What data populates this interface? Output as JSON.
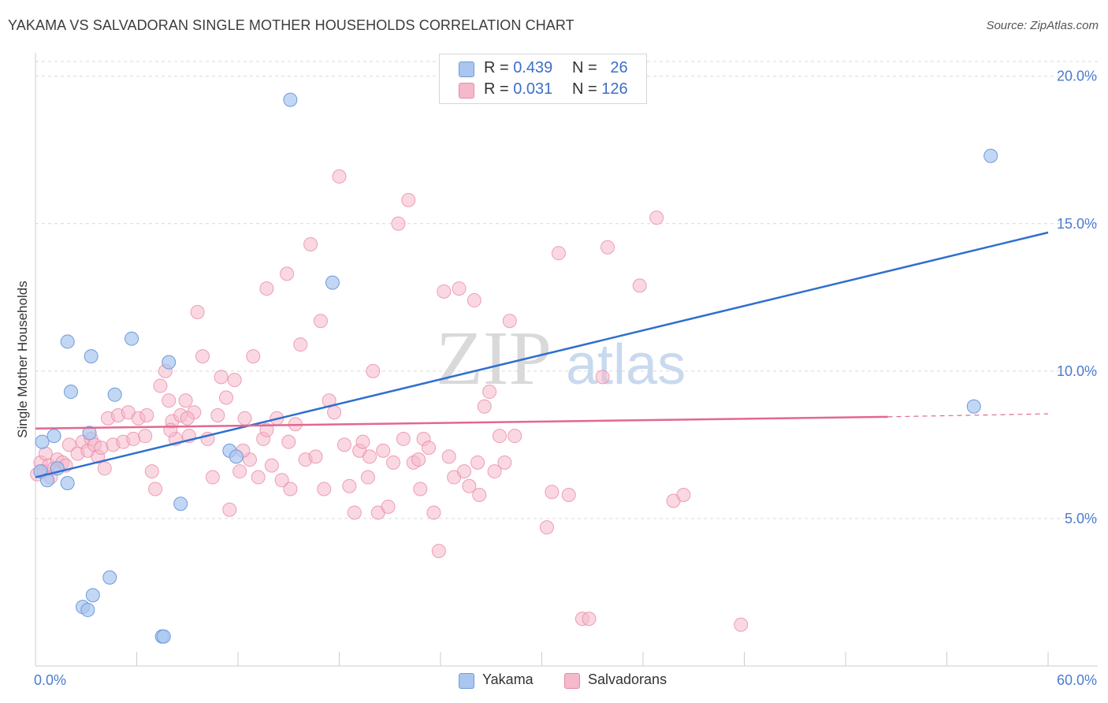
{
  "header": {
    "title": "YAKAMA VS SALVADORAN SINGLE MOTHER HOUSEHOLDS CORRELATION CHART",
    "source": "Source: ZipAtlas.com"
  },
  "watermark": {
    "text_zip": "ZIP",
    "text_atlas": "atlas"
  },
  "legend_top": {
    "rows": [
      {
        "r_label": "R =",
        "r_value": "0.439",
        "n_label": "N =",
        "n_value": "26"
      },
      {
        "r_label": "R =",
        "r_value": "0.031",
        "n_label": "N =",
        "n_value": "126"
      }
    ]
  },
  "legend_bottom": {
    "items": [
      "Yakama",
      "Salvadorans"
    ]
  },
  "colors": {
    "yakama_fill": "#a8c6ef",
    "yakama_stroke": "#6f9bd9",
    "yakama_line": "#2f6fce",
    "salv_fill": "#f6b8cb",
    "salv_stroke": "#e88aa8",
    "salv_line": "#e2688f",
    "grid": "#d9d9d9",
    "axis_label": "#4a7bd0"
  },
  "chart_data": {
    "type": "scatter",
    "title": "YAKAMA VS SALVADORAN SINGLE MOTHER HOUSEHOLDS CORRELATION CHART",
    "xlabel": "",
    "ylabel": "Single Mother Households",
    "xlim": [
      0,
      60
    ],
    "ylim": [
      0,
      20.5
    ],
    "x_tick_labels": [
      "0.0%",
      "60.0%"
    ],
    "y_ticks": [
      5,
      10,
      15,
      20
    ],
    "y_tick_labels": [
      "5.0%",
      "10.0%",
      "15.0%",
      "20.0%"
    ],
    "grid": true,
    "legend_position": "top-center",
    "series": [
      {
        "name": "Yakama",
        "r": 0.439,
        "n": 26,
        "trend": {
          "x": [
            0,
            60
          ],
          "y": [
            6.4,
            14.7
          ]
        },
        "points": [
          [
            0.3,
            6.6
          ],
          [
            0.7,
            6.3
          ],
          [
            0.4,
            7.6
          ],
          [
            1.1,
            7.8
          ],
          [
            1.3,
            6.7
          ],
          [
            1.9,
            6.2
          ],
          [
            1.9,
            11.0
          ],
          [
            3.2,
            7.9
          ],
          [
            3.3,
            10.5
          ],
          [
            4.7,
            9.2
          ],
          [
            5.7,
            11.1
          ],
          [
            7.9,
            10.3
          ],
          [
            2.1,
            9.3
          ],
          [
            8.6,
            5.5
          ],
          [
            11.5,
            7.3
          ],
          [
            11.9,
            7.1
          ],
          [
            15.1,
            19.2
          ],
          [
            17.6,
            13.0
          ],
          [
            4.4,
            3.0
          ],
          [
            3.4,
            2.4
          ],
          [
            2.8,
            2.0
          ],
          [
            3.1,
            1.9
          ],
          [
            7.5,
            1.0
          ],
          [
            7.6,
            1.0
          ],
          [
            56.6,
            17.3
          ],
          [
            55.6,
            8.8
          ]
        ]
      },
      {
        "name": "Salvadorans",
        "r": 0.031,
        "n": 126,
        "trend": {
          "x": [
            0,
            50.5
          ],
          "y": [
            8.05,
            8.45
          ]
        },
        "trend_dashed": {
          "x": [
            50.5,
            60
          ],
          "y": [
            8.45,
            8.55
          ]
        },
        "points": [
          [
            0.1,
            6.5
          ],
          [
            0.3,
            6.9
          ],
          [
            0.5,
            6.6
          ],
          [
            0.6,
            7.2
          ],
          [
            0.8,
            6.8
          ],
          [
            1.1,
            6.7
          ],
          [
            1.3,
            7.0
          ],
          [
            1.6,
            6.9
          ],
          [
            1.8,
            6.8
          ],
          [
            0.9,
            6.4
          ],
          [
            2.0,
            7.5
          ],
          [
            2.5,
            7.2
          ],
          [
            2.8,
            7.6
          ],
          [
            3.1,
            7.3
          ],
          [
            3.3,
            7.7
          ],
          [
            3.5,
            7.5
          ],
          [
            3.7,
            7.1
          ],
          [
            3.9,
            7.4
          ],
          [
            4.1,
            6.7
          ],
          [
            4.3,
            8.4
          ],
          [
            4.6,
            7.5
          ],
          [
            4.9,
            8.5
          ],
          [
            5.2,
            7.6
          ],
          [
            5.5,
            8.6
          ],
          [
            5.8,
            7.7
          ],
          [
            6.1,
            8.4
          ],
          [
            6.5,
            7.8
          ],
          [
            6.9,
            6.6
          ],
          [
            7.1,
            6.0
          ],
          [
            7.4,
            9.5
          ],
          [
            7.7,
            10.0
          ],
          [
            7.9,
            9.0
          ],
          [
            8.1,
            8.3
          ],
          [
            8.3,
            7.7
          ],
          [
            8.6,
            8.5
          ],
          [
            8.9,
            9.0
          ],
          [
            9.1,
            7.8
          ],
          [
            9.4,
            8.6
          ],
          [
            9.6,
            12.0
          ],
          [
            9.9,
            10.5
          ],
          [
            10.2,
            7.7
          ],
          [
            10.5,
            6.4
          ],
          [
            10.8,
            8.5
          ],
          [
            11.0,
            9.8
          ],
          [
            11.3,
            9.1
          ],
          [
            11.5,
            5.3
          ],
          [
            11.8,
            9.7
          ],
          [
            12.1,
            6.6
          ],
          [
            12.4,
            8.4
          ],
          [
            12.7,
            7.0
          ],
          [
            12.9,
            10.5
          ],
          [
            13.2,
            6.4
          ],
          [
            13.5,
            7.7
          ],
          [
            13.7,
            12.8
          ],
          [
            14.0,
            6.8
          ],
          [
            14.3,
            8.4
          ],
          [
            14.6,
            6.3
          ],
          [
            14.9,
            13.3
          ],
          [
            15.1,
            6.0
          ],
          [
            15.4,
            8.2
          ],
          [
            15.7,
            10.9
          ],
          [
            16.0,
            7.0
          ],
          [
            16.3,
            14.3
          ],
          [
            16.6,
            7.1
          ],
          [
            16.9,
            11.7
          ],
          [
            17.1,
            6.0
          ],
          [
            17.4,
            9.0
          ],
          [
            17.7,
            8.6
          ],
          [
            18.0,
            16.6
          ],
          [
            18.3,
            7.5
          ],
          [
            18.6,
            6.1
          ],
          [
            18.9,
            5.2
          ],
          [
            19.2,
            7.3
          ],
          [
            19.4,
            7.6
          ],
          [
            19.7,
            6.4
          ],
          [
            20.0,
            10.0
          ],
          [
            20.3,
            5.2
          ],
          [
            20.6,
            7.3
          ],
          [
            20.9,
            5.4
          ],
          [
            21.2,
            6.9
          ],
          [
            21.5,
            15.0
          ],
          [
            21.8,
            7.7
          ],
          [
            22.1,
            15.8
          ],
          [
            22.4,
            6.9
          ],
          [
            22.7,
            7.0
          ],
          [
            23.0,
            7.7
          ],
          [
            23.3,
            7.4
          ],
          [
            23.6,
            5.2
          ],
          [
            23.9,
            3.9
          ],
          [
            24.2,
            12.7
          ],
          [
            24.5,
            7.1
          ],
          [
            24.8,
            6.4
          ],
          [
            25.1,
            12.8
          ],
          [
            25.4,
            6.6
          ],
          [
            25.7,
            6.1
          ],
          [
            26.0,
            12.4
          ],
          [
            26.3,
            5.8
          ],
          [
            26.6,
            8.8
          ],
          [
            26.9,
            9.3
          ],
          [
            27.2,
            6.6
          ],
          [
            27.5,
            7.8
          ],
          [
            27.8,
            6.9
          ],
          [
            28.1,
            11.7
          ],
          [
            28.4,
            7.8
          ],
          [
            30.3,
            4.7
          ],
          [
            31.0,
            14.0
          ],
          [
            30.6,
            5.9
          ],
          [
            31.6,
            5.8
          ],
          [
            33.6,
            9.8
          ],
          [
            32.4,
            1.6
          ],
          [
            32.8,
            1.6
          ],
          [
            33.9,
            14.2
          ],
          [
            35.8,
            12.9
          ],
          [
            36.8,
            15.2
          ],
          [
            37.8,
            5.6
          ],
          [
            38.4,
            5.8
          ],
          [
            41.8,
            1.4
          ],
          [
            19.8,
            7.1
          ],
          [
            22.8,
            6.0
          ],
          [
            26.2,
            6.9
          ],
          [
            9.0,
            8.4
          ],
          [
            13.7,
            8.0
          ],
          [
            15.0,
            7.6
          ],
          [
            8.0,
            8.0
          ],
          [
            6.6,
            8.5
          ],
          [
            12.3,
            7.3
          ]
        ]
      }
    ]
  }
}
